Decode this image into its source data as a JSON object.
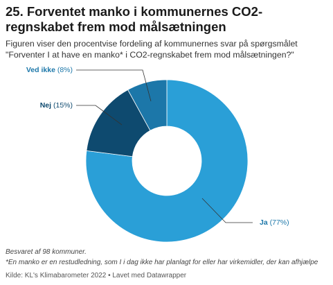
{
  "chart_data": {
    "type": "donut",
    "title": "25. Forventet manko i kommunernes CO2-regnskabet frem mod målsætningen",
    "subtitle": "Figuren viser den procentvise fordeling af kommunernes svar på spørgsmålet \"Forventer I at have en manko* i CO2-regnskabet frem mod målsætningen?\"",
    "categories": [
      "Ja",
      "Nej",
      "Ved ikke"
    ],
    "values": [
      77,
      15,
      8
    ],
    "value_labels": [
      "(77%)",
      "(15%)",
      "(8%)"
    ],
    "colors": [
      "#2a9fd7",
      "#0e4a6f",
      "#1c77a9"
    ],
    "notes": [
      "Besvaret af 98 kommuner.",
      "*En manko er en restudledning, som I i dag ikke har planlagt for eller har virkemidler, der kan afhjælpe"
    ],
    "source": "Kilde: KL's Klimabarometer 2022 • Lavet med Datawrapper"
  }
}
